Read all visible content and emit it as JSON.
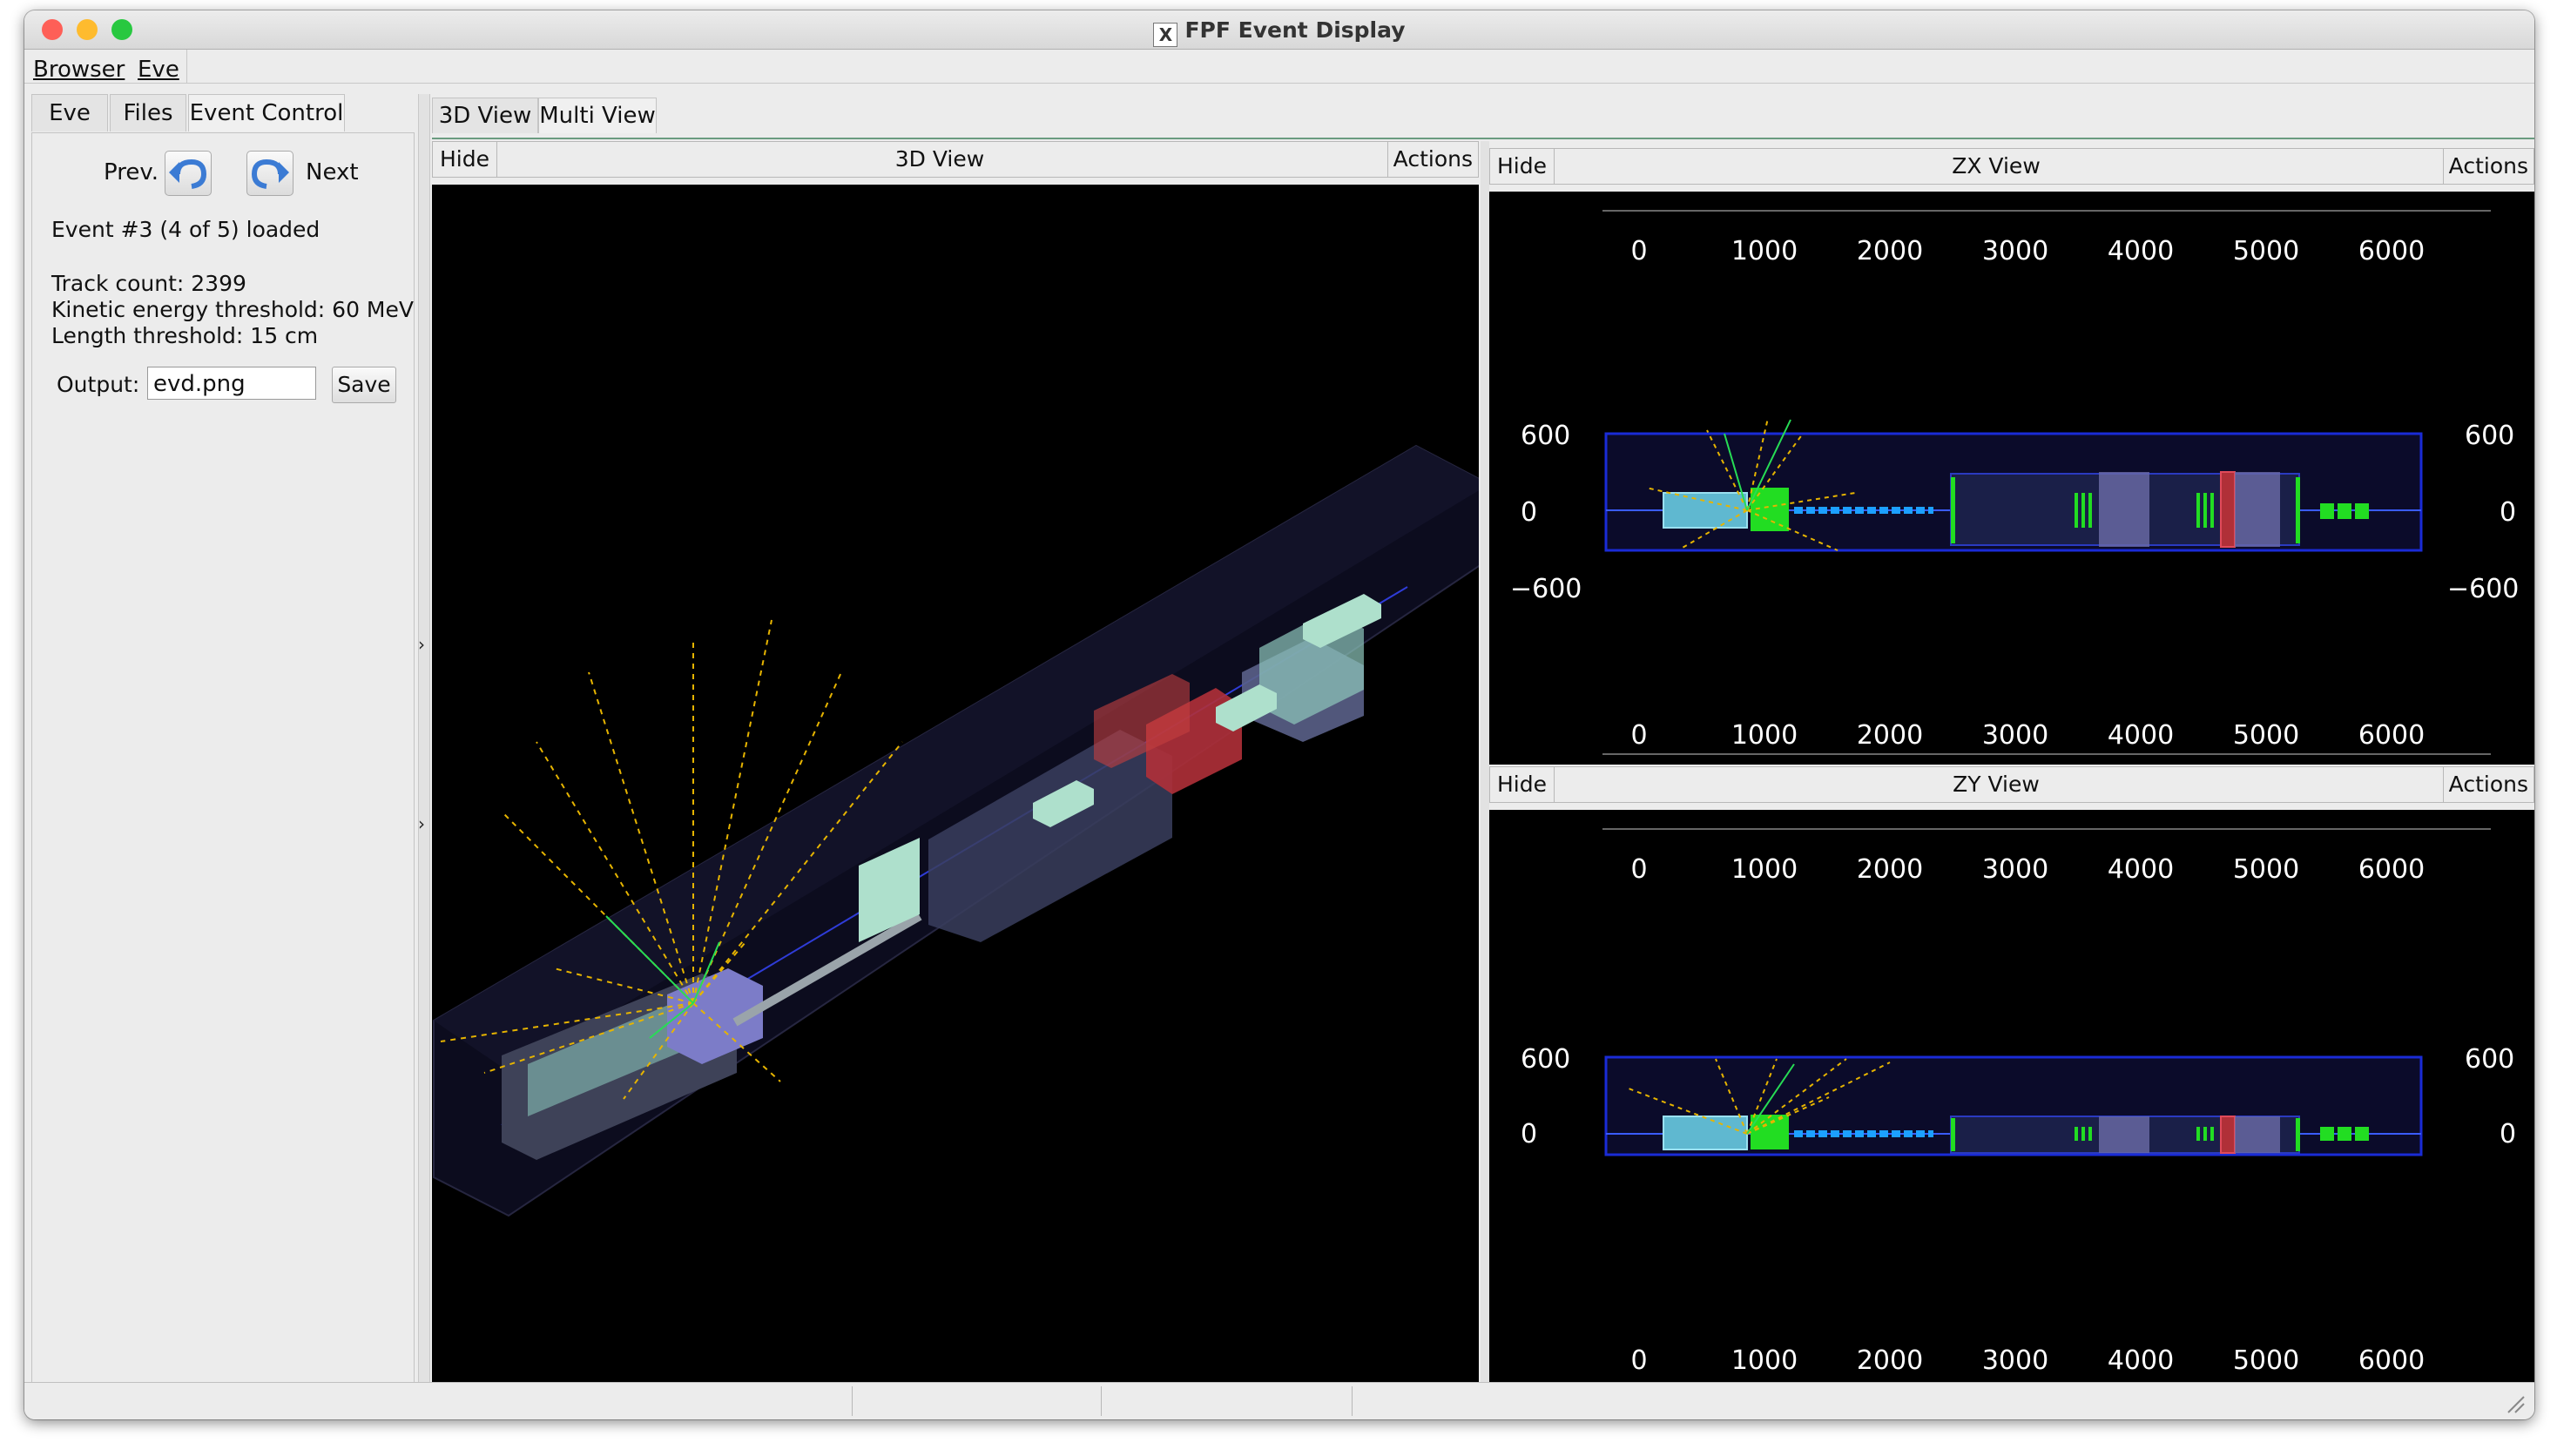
{
  "window": {
    "title": "FPF Event Display"
  },
  "menu": {
    "items": [
      "Browser",
      "Eve"
    ]
  },
  "left_tabs": [
    "Eve",
    "Files",
    "Event Control"
  ],
  "event_control": {
    "prev_label": "Prev.",
    "next_label": "Next",
    "status": "Event #3 (4 of 5) loaded",
    "track_count": "Track count: 2399",
    "ke_threshold": "Kinetic energy threshold: 60 MeV",
    "len_threshold": "Length threshold: 15 cm",
    "output_label": "Output:",
    "output_value": "evd.png",
    "save_label": "Save"
  },
  "view_tabs": [
    "3D View",
    "Multi View"
  ],
  "panels": {
    "view3d": {
      "hide": "Hide",
      "title": "3D View",
      "actions": "Actions"
    },
    "zx": {
      "hide": "Hide",
      "title": "ZX View",
      "actions": "Actions"
    },
    "zy": {
      "hide": "Hide",
      "title": "ZY View",
      "actions": "Actions"
    }
  },
  "axis_labels": {
    "horizontal": [
      "0",
      "1000",
      "2000",
      "3000",
      "4000",
      "5000",
      "6000"
    ],
    "vertical_zx": [
      "600",
      "0",
      "−600"
    ],
    "vertical_zy": [
      "600",
      "0"
    ]
  },
  "colors": {
    "traffic_red": "#fe5f57",
    "traffic_yellow": "#febb2e",
    "traffic_green": "#28c840",
    "detector_green": "#22dd22",
    "track_yellow": "#e6b400",
    "beam_blue": "#3a5cff",
    "outline_blue": "#1a2bd6",
    "calorimeter_red": "#b0303a"
  },
  "icons": {
    "prev": "undo-arrow-icon",
    "next": "redo-arrow-icon"
  }
}
